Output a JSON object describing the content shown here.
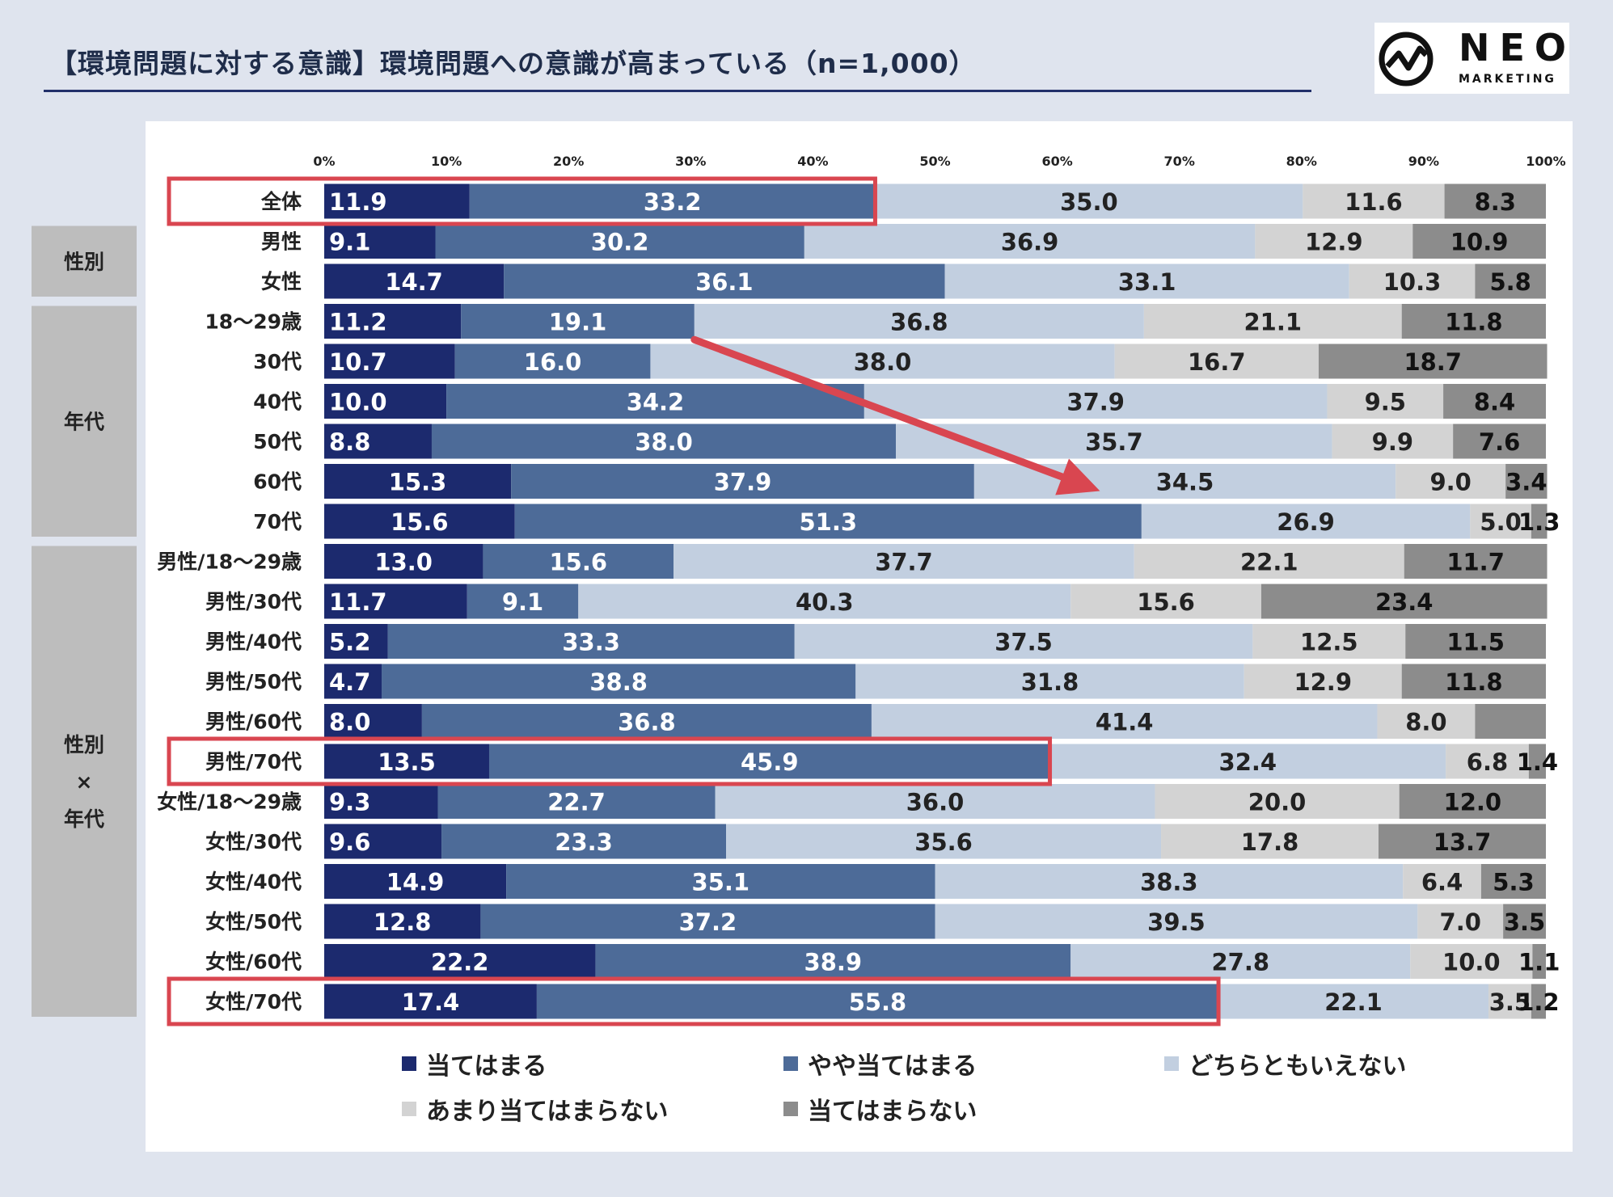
{
  "title": "【環境問題に対する意識】環境問題への意識が高まっている（n=1,000）",
  "logo": {
    "word": "NEO",
    "sub": "MARKETING"
  },
  "chart_data": {
    "type": "bar",
    "orientation": "horizontal",
    "stacked": "percent",
    "xlim": [
      0,
      100
    ],
    "x_ticks": [
      "0%",
      "10%",
      "20%",
      "30%",
      "40%",
      "50%",
      "60%",
      "70%",
      "80%",
      "90%",
      "100%"
    ],
    "categories": [
      "全体",
      "男性",
      "女性",
      "18～29歳",
      "30代",
      "40代",
      "50代",
      "60代",
      "70代",
      "男性/18～29歳",
      "男性/30代",
      "男性/40代",
      "男性/50代",
      "男性/60代",
      "男性/70代",
      "女性/18～29歳",
      "女性/30代",
      "女性/40代",
      "女性/50代",
      "女性/60代",
      "女性/70代"
    ],
    "groups": [
      {
        "label": "性別"
      },
      {
        "label": "年代"
      },
      {
        "label": "性別\n×\n年代"
      }
    ],
    "series": [
      {
        "name": "当てはまる",
        "color": "#1c2a6e",
        "label_color": "#ffffff",
        "values": [
          11.9,
          9.1,
          14.7,
          11.2,
          10.7,
          10.0,
          8.8,
          15.3,
          15.6,
          13.0,
          11.7,
          5.2,
          4.7,
          8.0,
          13.5,
          9.3,
          9.6,
          14.9,
          12.8,
          22.2,
          17.4
        ]
      },
      {
        "name": "やや当てはまる",
        "color": "#4d6b98",
        "label_color": "#ffffff",
        "values": [
          33.2,
          30.2,
          36.1,
          19.1,
          16.0,
          34.2,
          38.0,
          37.9,
          51.3,
          15.6,
          9.1,
          33.3,
          38.8,
          36.8,
          45.9,
          22.7,
          23.3,
          35.1,
          37.2,
          38.9,
          55.8
        ]
      },
      {
        "name": "どちらともいえない",
        "color": "#c2cfe0",
        "label_color": "#222222",
        "values": [
          35.0,
          36.9,
          33.1,
          36.8,
          38.0,
          37.9,
          35.7,
          34.5,
          26.9,
          37.7,
          40.3,
          37.5,
          31.8,
          41.4,
          32.4,
          36.0,
          35.6,
          38.3,
          39.5,
          27.8,
          22.1
        ]
      },
      {
        "name": "あまり当てはまらない",
        "color": "#d3d3d3",
        "label_color": "#222222",
        "values": [
          11.6,
          12.9,
          10.3,
          21.1,
          16.7,
          9.5,
          9.9,
          9.0,
          5.0,
          22.1,
          15.6,
          12.5,
          12.9,
          8.0,
          6.8,
          20.0,
          17.8,
          6.4,
          7.0,
          10.0,
          3.5
        ]
      },
      {
        "name": "当てはまらない",
        "color": "#8c8c8c",
        "label_color": "#111111",
        "values": [
          8.3,
          10.9,
          5.8,
          11.8,
          18.7,
          8.4,
          7.6,
          3.4,
          1.3,
          11.7,
          23.4,
          11.5,
          11.8,
          5.8,
          1.4,
          12.0,
          13.7,
          5.3,
          3.5,
          1.1,
          1.2
        ]
      }
    ],
    "hidden_labels": [
      {
        "row": 13,
        "series": 4
      }
    ],
    "highlight_boxes": [
      {
        "row": 0,
        "to": 45.1
      },
      {
        "row": 14,
        "to": 59.4
      },
      {
        "row": 20,
        "to": 73.2
      }
    ],
    "arrow": {
      "from_row": 3.5,
      "from_x": 30.3,
      "to_row": 7.0,
      "to_x": 63.5
    },
    "highlight_color": "#d94650"
  }
}
